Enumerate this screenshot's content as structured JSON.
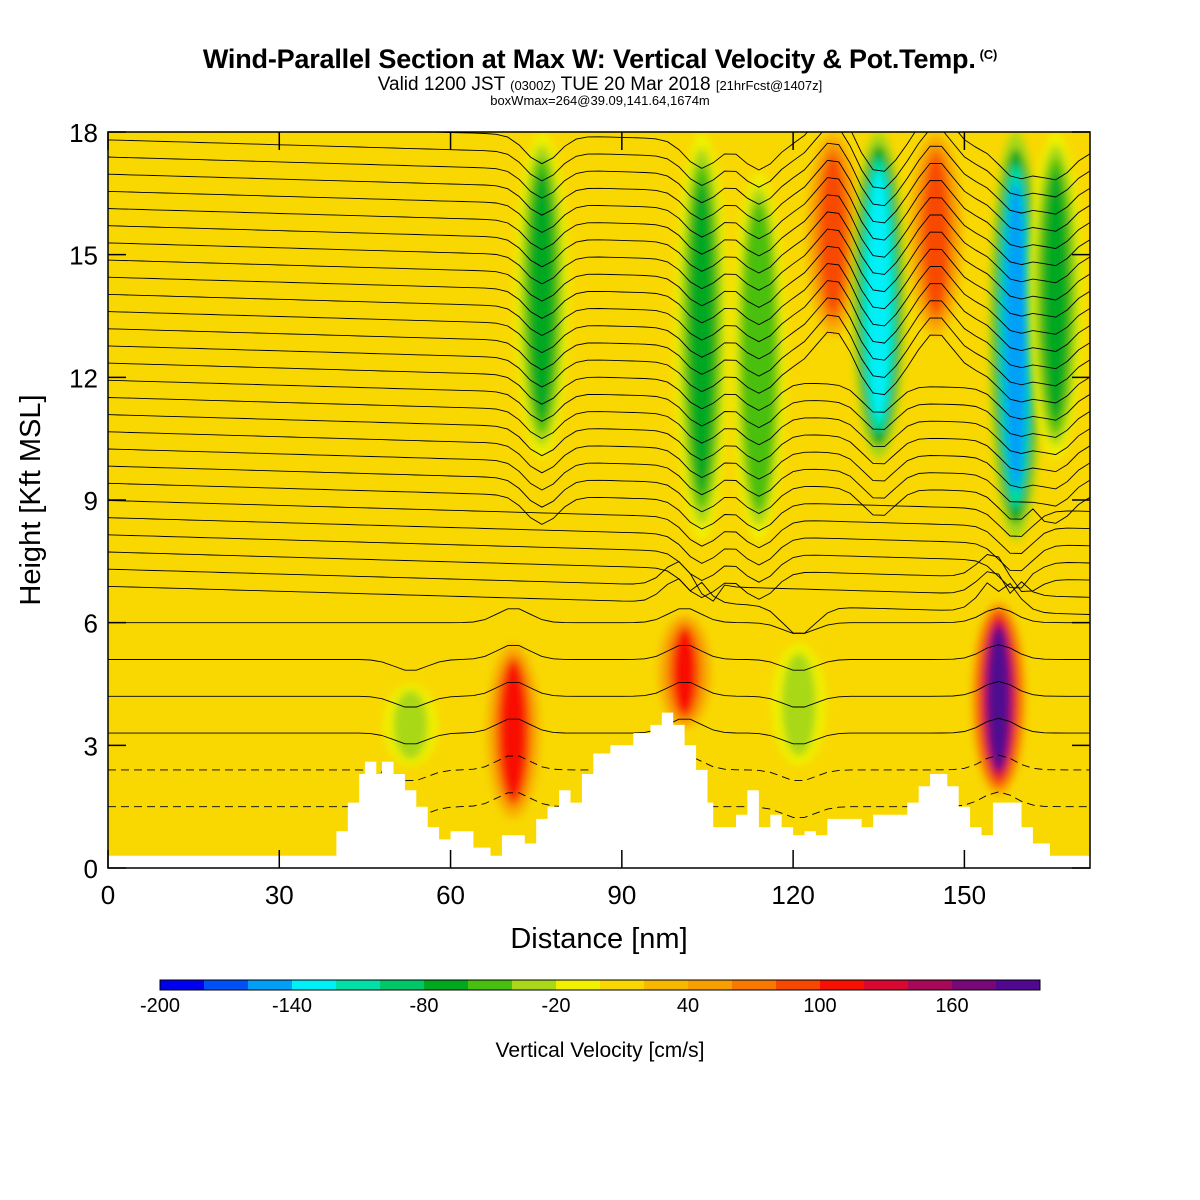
{
  "header": {
    "title": "Wind-Parallel Section at Max W: Vertical Velocity & Pot.Temp.",
    "copyright": "(C)",
    "valid_prefix": "Valid 1200 JST",
    "valid_zulu": "(0300Z)",
    "valid_date": "TUE 20 Mar 2018",
    "forecast": "[21hrFcst@1407z]",
    "box_info": "boxWmax=264@39.09,141.64,1674m"
  },
  "chart_data": {
    "type": "heatmap",
    "title": "Wind-Parallel Section at Max W: Vertical Velocity & Pot.Temp.",
    "xlabel": "Distance [nm]",
    "ylabel": "Height [Kft MSL]",
    "xlim": [
      0,
      172
    ],
    "ylim": [
      0,
      18
    ],
    "xticks": [
      0,
      30,
      60,
      90,
      120,
      150
    ],
    "yticks": [
      0,
      3,
      6,
      9,
      12,
      15,
      18
    ],
    "grid": false,
    "colorbar": {
      "label": "Vertical Velocity [cm/s]",
      "levels": [
        -200,
        -180,
        -160,
        -140,
        -120,
        -100,
        -80,
        -60,
        -40,
        -20,
        0,
        20,
        40,
        60,
        80,
        100,
        120,
        140,
        160,
        180
      ],
      "colors": [
        "#0000f0",
        "#0050f8",
        "#00a0f8",
        "#00f0f8",
        "#00e0a8",
        "#00c868",
        "#00a820",
        "#48c010",
        "#a8d818",
        "#f0f000",
        "#f8d800",
        "#f8b800",
        "#f8a000",
        "#f87800",
        "#f84800",
        "#f81000",
        "#d80830",
        "#a80858",
        "#780878",
        "#500890"
      ],
      "tick_labels": [
        "-200",
        "-140",
        "-80",
        "-20",
        "40",
        "100",
        "160"
      ]
    },
    "background_value_cm_s": 0,
    "vertical_velocity_features": [
      {
        "x_nm": 71,
        "top_kft": 5.5,
        "bottom_kft": 1.2,
        "peak_cm_s": 110,
        "kind": "updraft"
      },
      {
        "x_nm": 101,
        "top_kft": 6.2,
        "bottom_kft": 3.4,
        "peak_cm_s": 100,
        "kind": "updraft"
      },
      {
        "x_nm": 156,
        "top_kft": 6.5,
        "bottom_kft": 1.8,
        "peak_cm_s": 180,
        "kind": "updraft"
      },
      {
        "x_nm": 127,
        "top_kft": 18,
        "bottom_kft": 13,
        "peak_cm_s": 90,
        "kind": "updraft"
      },
      {
        "x_nm": 145,
        "top_kft": 18,
        "bottom_kft": 13,
        "peak_cm_s": 90,
        "kind": "updraft"
      },
      {
        "x_nm": 76,
        "top_kft": 18,
        "bottom_kft": 10,
        "peak_cm_s": -80,
        "kind": "downdraft"
      },
      {
        "x_nm": 104,
        "top_kft": 18,
        "bottom_kft": 8,
        "peak_cm_s": -80,
        "kind": "downdraft"
      },
      {
        "x_nm": 114,
        "top_kft": 17,
        "bottom_kft": 8,
        "peak_cm_s": -60,
        "kind": "downdraft"
      },
      {
        "x_nm": 135,
        "top_kft": 18,
        "bottom_kft": 10,
        "peak_cm_s": -140,
        "kind": "downdraft"
      },
      {
        "x_nm": 159,
        "top_kft": 18,
        "bottom_kft": 8,
        "peak_cm_s": -160,
        "kind": "downdraft"
      },
      {
        "x_nm": 166,
        "top_kft": 18,
        "bottom_kft": 10,
        "peak_cm_s": -80,
        "kind": "downdraft"
      },
      {
        "x_nm": 121,
        "top_kft": 5.5,
        "bottom_kft": 2.5,
        "peak_cm_s": -30,
        "kind": "downdraft"
      },
      {
        "x_nm": 53,
        "top_kft": 4.5,
        "bottom_kft": 2.5,
        "peak_cm_s": -40,
        "kind": "downdraft"
      }
    ],
    "terrain": [
      [
        0,
        0.3
      ],
      [
        38,
        0.3
      ],
      [
        40,
        0.9
      ],
      [
        42,
        1.6
      ],
      [
        44,
        2.3
      ],
      [
        45,
        2.6
      ],
      [
        47,
        2.3
      ],
      [
        48,
        2.6
      ],
      [
        50,
        2.3
      ],
      [
        52,
        1.9
      ],
      [
        54,
        1.5
      ],
      [
        56,
        1.0
      ],
      [
        58,
        0.7
      ],
      [
        60,
        0.9
      ],
      [
        64,
        0.5
      ],
      [
        67,
        0.3
      ],
      [
        69,
        0.8
      ],
      [
        71,
        0.8
      ],
      [
        73,
        0.6
      ],
      [
        75,
        1.2
      ],
      [
        77,
        1.5
      ],
      [
        79,
        1.9
      ],
      [
        81,
        1.6
      ],
      [
        83,
        2.3
      ],
      [
        85,
        2.8
      ],
      [
        88,
        3.0
      ],
      [
        90,
        3.0
      ],
      [
        92,
        3.3
      ],
      [
        95,
        3.5
      ],
      [
        97,
        3.8
      ],
      [
        99,
        3.5
      ],
      [
        101,
        3.0
      ],
      [
        103,
        2.4
      ],
      [
        105,
        1.6
      ],
      [
        106,
        1.0
      ],
      [
        108,
        1.0
      ],
      [
        110,
        1.3
      ],
      [
        112,
        1.9
      ],
      [
        114,
        1.0
      ],
      [
        116,
        1.3
      ],
      [
        118,
        1.0
      ],
      [
        120,
        0.8
      ],
      [
        122,
        0.9
      ],
      [
        124,
        0.8
      ],
      [
        126,
        1.2
      ],
      [
        130,
        1.2
      ],
      [
        132,
        1.0
      ],
      [
        134,
        1.3
      ],
      [
        137,
        1.3
      ],
      [
        140,
        1.6
      ],
      [
        142,
        2.0
      ],
      [
        144,
        2.3
      ],
      [
        147,
        2.0
      ],
      [
        149,
        1.5
      ],
      [
        151,
        1.0
      ],
      [
        153,
        0.8
      ],
      [
        155,
        1.6
      ],
      [
        158,
        1.6
      ],
      [
        160,
        1.0
      ],
      [
        162,
        0.6
      ],
      [
        165,
        0.3
      ],
      [
        172,
        0.3
      ]
    ],
    "theta_contours_k": [
      "6",
      "8",
      "10",
      "12",
      "14",
      "16",
      "18",
      "20",
      "22",
      "24",
      "26",
      "28",
      "30",
      "32",
      "34"
    ],
    "theta_sample_labels_legible": false
  }
}
